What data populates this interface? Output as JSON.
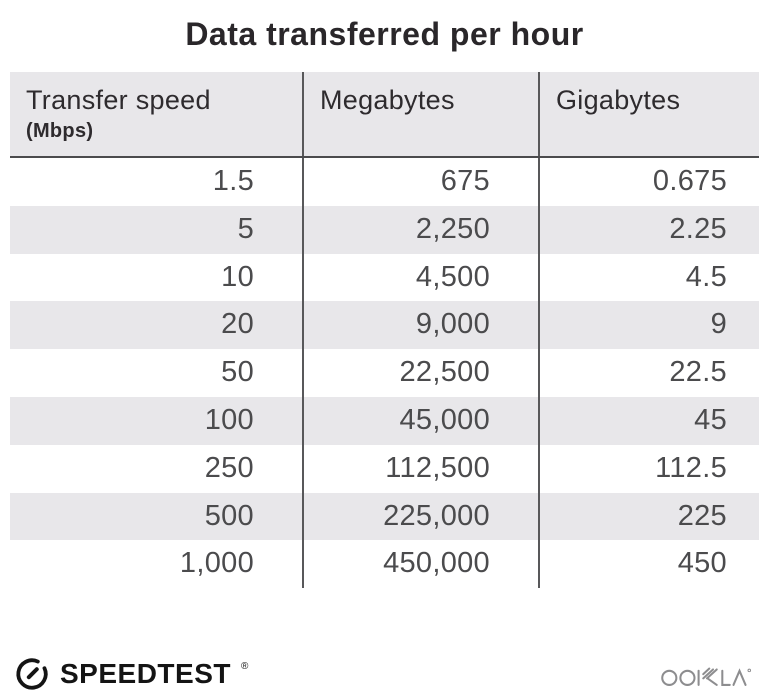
{
  "title": "Data transferred per hour",
  "table": {
    "columns": [
      {
        "label": "Transfer speed",
        "sublabel": "(Mbps)"
      },
      {
        "label": "Megabytes",
        "sublabel": ""
      },
      {
        "label": "Gigabytes",
        "sublabel": ""
      }
    ],
    "rows": [
      [
        "1.5",
        "675",
        "0.675"
      ],
      [
        "5",
        "2,250",
        "2.25"
      ],
      [
        "10",
        "4,500",
        "4.5"
      ],
      [
        "20",
        "9,000",
        "9"
      ],
      [
        "50",
        "22,500",
        "22.5"
      ],
      [
        "100",
        "45,000",
        "45"
      ],
      [
        "250",
        "112,500",
        "112.5"
      ],
      [
        "500",
        "225,000",
        "225"
      ],
      [
        "1,000",
        "450,000",
        "450"
      ]
    ]
  },
  "footer": {
    "speedtest_label": "SPEEDTEST",
    "speedtest_trademark": "®",
    "ookla_label": "OOKLA"
  },
  "colors": {
    "page_bg": "#ffffff",
    "stripe_bg": "#e8e7ea",
    "divider": "#58585a",
    "heavy_line": "#4b4b4d",
    "title_text": "#2a272a",
    "header_text": "#2e2b2e",
    "data_text": "#4b4b4d",
    "logo_black": "#141414",
    "ookla_gray": "#8d8d8f"
  },
  "chart_data": {
    "type": "table",
    "title": "Data transferred per hour",
    "categories": [
      "Transfer speed (Mbps)",
      "Megabytes",
      "Gigabytes"
    ],
    "series": [
      {
        "name": "Transfer speed (Mbps)",
        "values": [
          1.5,
          5,
          10,
          20,
          50,
          100,
          250,
          500,
          1000
        ]
      },
      {
        "name": "Megabytes",
        "values": [
          675,
          2250,
          4500,
          9000,
          22500,
          45000,
          112500,
          225000,
          450000
        ]
      },
      {
        "name": "Gigabytes",
        "values": [
          0.675,
          2.25,
          4.5,
          9,
          22.5,
          45,
          112.5,
          225,
          450
        ]
      }
    ]
  }
}
